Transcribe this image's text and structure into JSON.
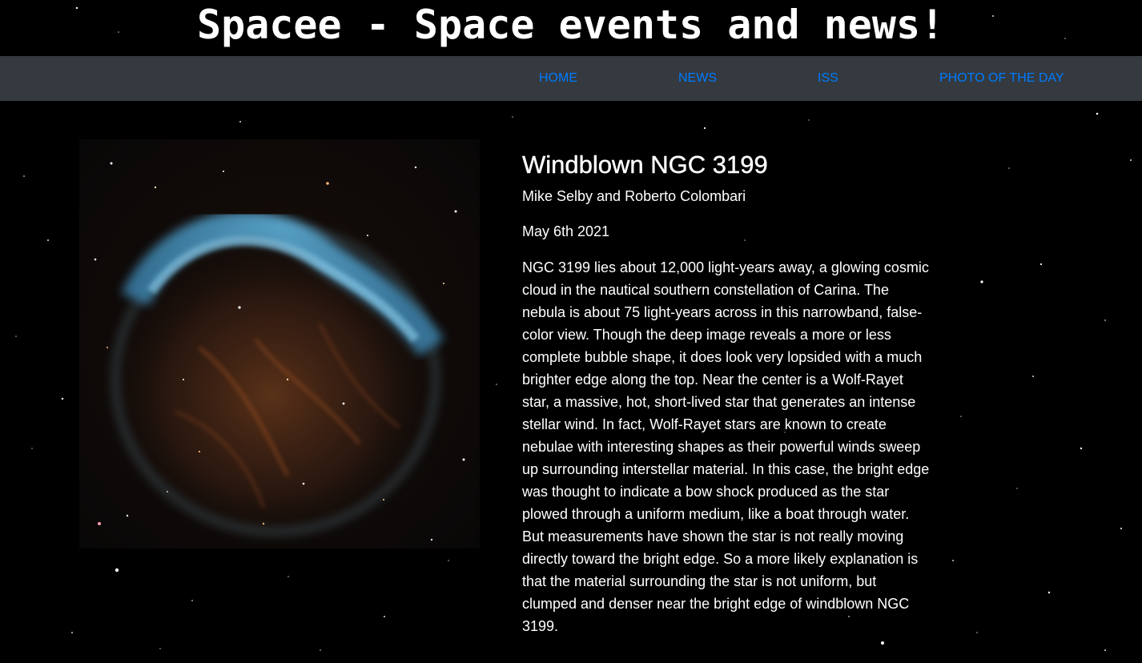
{
  "header": {
    "site_title": "Spacee - Space events and news!"
  },
  "nav": {
    "items": [
      {
        "label": "HOME"
      },
      {
        "label": "NEWS"
      },
      {
        "label": "ISS"
      },
      {
        "label": "PHOTO OF THE DAY"
      }
    ],
    "link_color": "#007bff",
    "bar_color": "#343a40"
  },
  "apod": {
    "title": "Windblown NGC 3199",
    "credit": "Mike Selby and Roberto Colombari",
    "date": "May 6th 2021",
    "explanation": "NGC 3199 lies about 12,000 light-years away, a glowing cosmic cloud in the nautical southern constellation of Carina. The nebula is about 75 light-years across in this narrowband, false-color view. Though the deep image reveals a more or less complete bubble shape, it does look very lopsided with a much brighter edge along the top. Near the center is a Wolf-Rayet star, a massive, hot, short-lived star that generates an intense stellar wind. In fact, Wolf-Rayet stars are known to create nebulae with interesting shapes as their powerful winds sweep up surrounding interstellar material. In this case, the bright edge was thought to indicate a bow shock produced as the star plowed through a uniform medium, like a boat through water. But measurements have shown the star is not really moving directly toward the bright edge. So a more likely explanation is that the material surrounding the star is not uniform, but clumped and denser near the bright edge of windblown NGC 3199."
  },
  "theme": {
    "background": "#000000",
    "text": "#ffffff"
  }
}
